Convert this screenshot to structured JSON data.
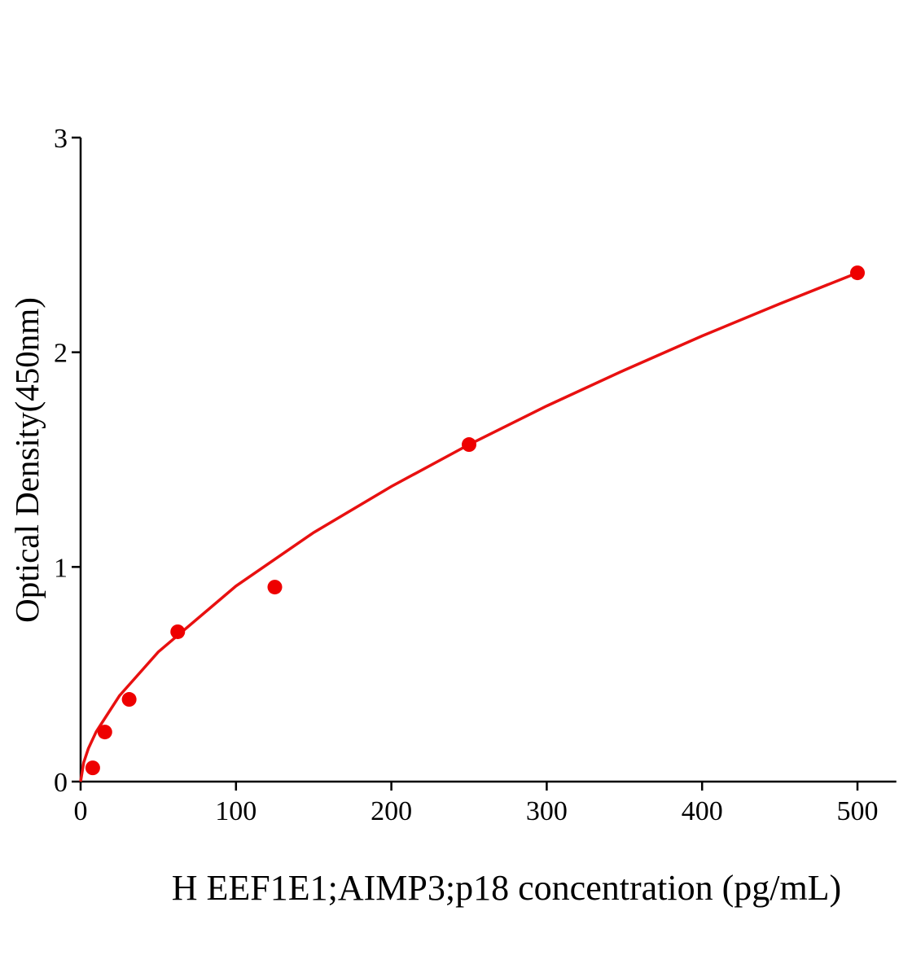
{
  "chart_data": {
    "type": "scatter",
    "title": "",
    "xlabel": "H EEF1E1;AIMP3;p18 concentration (pg/mL)",
    "ylabel": "Optical Density(450nm)",
    "xlim": [
      0,
      525
    ],
    "ylim": [
      0,
      3
    ],
    "xticks": [
      0,
      100,
      200,
      300,
      400,
      500
    ],
    "yticks": [
      0,
      1,
      2,
      3
    ],
    "xtick_labels": [
      "0",
      "100",
      "200",
      "300",
      "400",
      "500"
    ],
    "ytick_labels": [
      "0",
      "1",
      "2",
      "3"
    ],
    "grid": false,
    "colors": {
      "points": "#ee0000",
      "curve": "#e81010",
      "axes": "#000000"
    },
    "points": {
      "x": [
        7.8,
        15.6,
        31.25,
        62.5,
        125,
        250,
        500
      ],
      "y": [
        0.064,
        0.231,
        0.383,
        0.698,
        0.906,
        1.57,
        2.37
      ]
    },
    "fit_curve": {
      "x": [
        0,
        2,
        5,
        10,
        25,
        50,
        100,
        150,
        200,
        250,
        300,
        350,
        400,
        450,
        500
      ],
      "y": [
        0,
        0.089,
        0.154,
        0.232,
        0.4,
        0.604,
        0.911,
        1.16,
        1.375,
        1.57,
        1.75,
        1.917,
        2.076,
        2.226,
        2.37
      ]
    }
  }
}
